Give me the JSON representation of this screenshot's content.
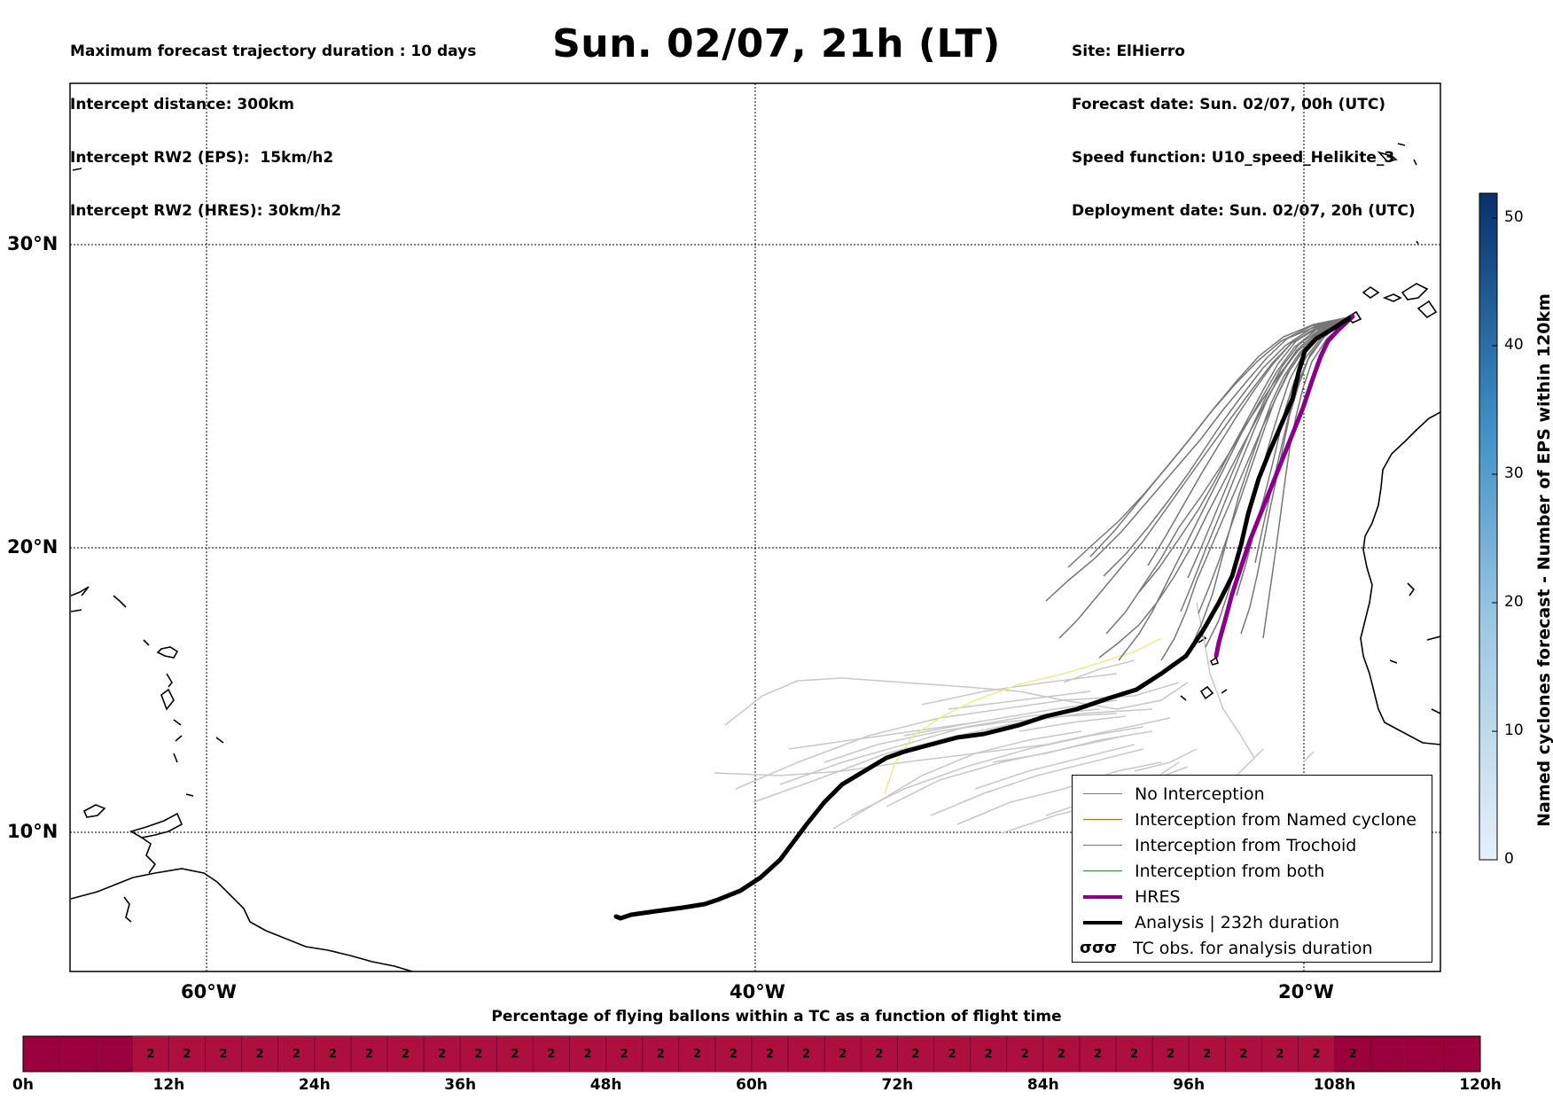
{
  "header_left": [
    "Maximum forecast trajectory duration : 10 days",
    "Intercept distance: 300km",
    "Intercept RW2 (EPS):  15km/h2",
    "Intercept RW2 (HRES): 30km/h2"
  ],
  "title": "Sun. 02/07, 21h (LT)",
  "header_right": [
    "Site: ElHierro",
    "Forecast date: Sun. 02/07, 00h (UTC)",
    "Speed function: U10_speed_Helikite_3",
    "Deployment date: Sun. 02/07, 20h (UTC)"
  ],
  "map": {
    "lon_labels": [
      "60°W",
      "40°W",
      "20°W"
    ],
    "lat_labels": [
      "30°N",
      "20°N",
      "10°N"
    ]
  },
  "legend": [
    {
      "label": "No Interception",
      "color": "#777777",
      "style": "thin"
    },
    {
      "label": "Interception from Named cyclone",
      "color": "#e8561c",
      "style": "thin"
    },
    {
      "label": "Interception from Trochoid",
      "color": "#7f7f2a",
      "style": "thin"
    },
    {
      "label": "Interception from both",
      "color": "#2e8b2e",
      "style": "thin"
    },
    {
      "label": "HRES",
      "color": "#8b008b",
      "style": "thick"
    },
    {
      "label": "Analysis | 232h duration",
      "color": "#000000",
      "style": "thick"
    },
    {
      "label": "TC obs. for analysis duration",
      "color": "#000000",
      "style": "symbol",
      "symbol": "σσσ"
    }
  ],
  "colorbar": {
    "title": "Named cyclones forecast - Number of EPS within 120km",
    "ticks": [
      "0",
      "10",
      "20",
      "30",
      "40",
      "50"
    ],
    "min": 0,
    "max": 52
  },
  "flight_bar": {
    "title": "Percentage of flying ballons within a TC as a function of flight time",
    "cell_value": "2",
    "tick_labels": [
      "0h",
      "12h",
      "24h",
      "36h",
      "48h",
      "60h",
      "72h",
      "84h",
      "96h",
      "108h",
      "120h"
    ]
  },
  "colors": {
    "no_interception": "#777777",
    "hres": "#8b008b",
    "analysis": "#000000",
    "flight_bar_dark": "#9b003c",
    "flight_bar_light": "#ad0f3f"
  }
}
